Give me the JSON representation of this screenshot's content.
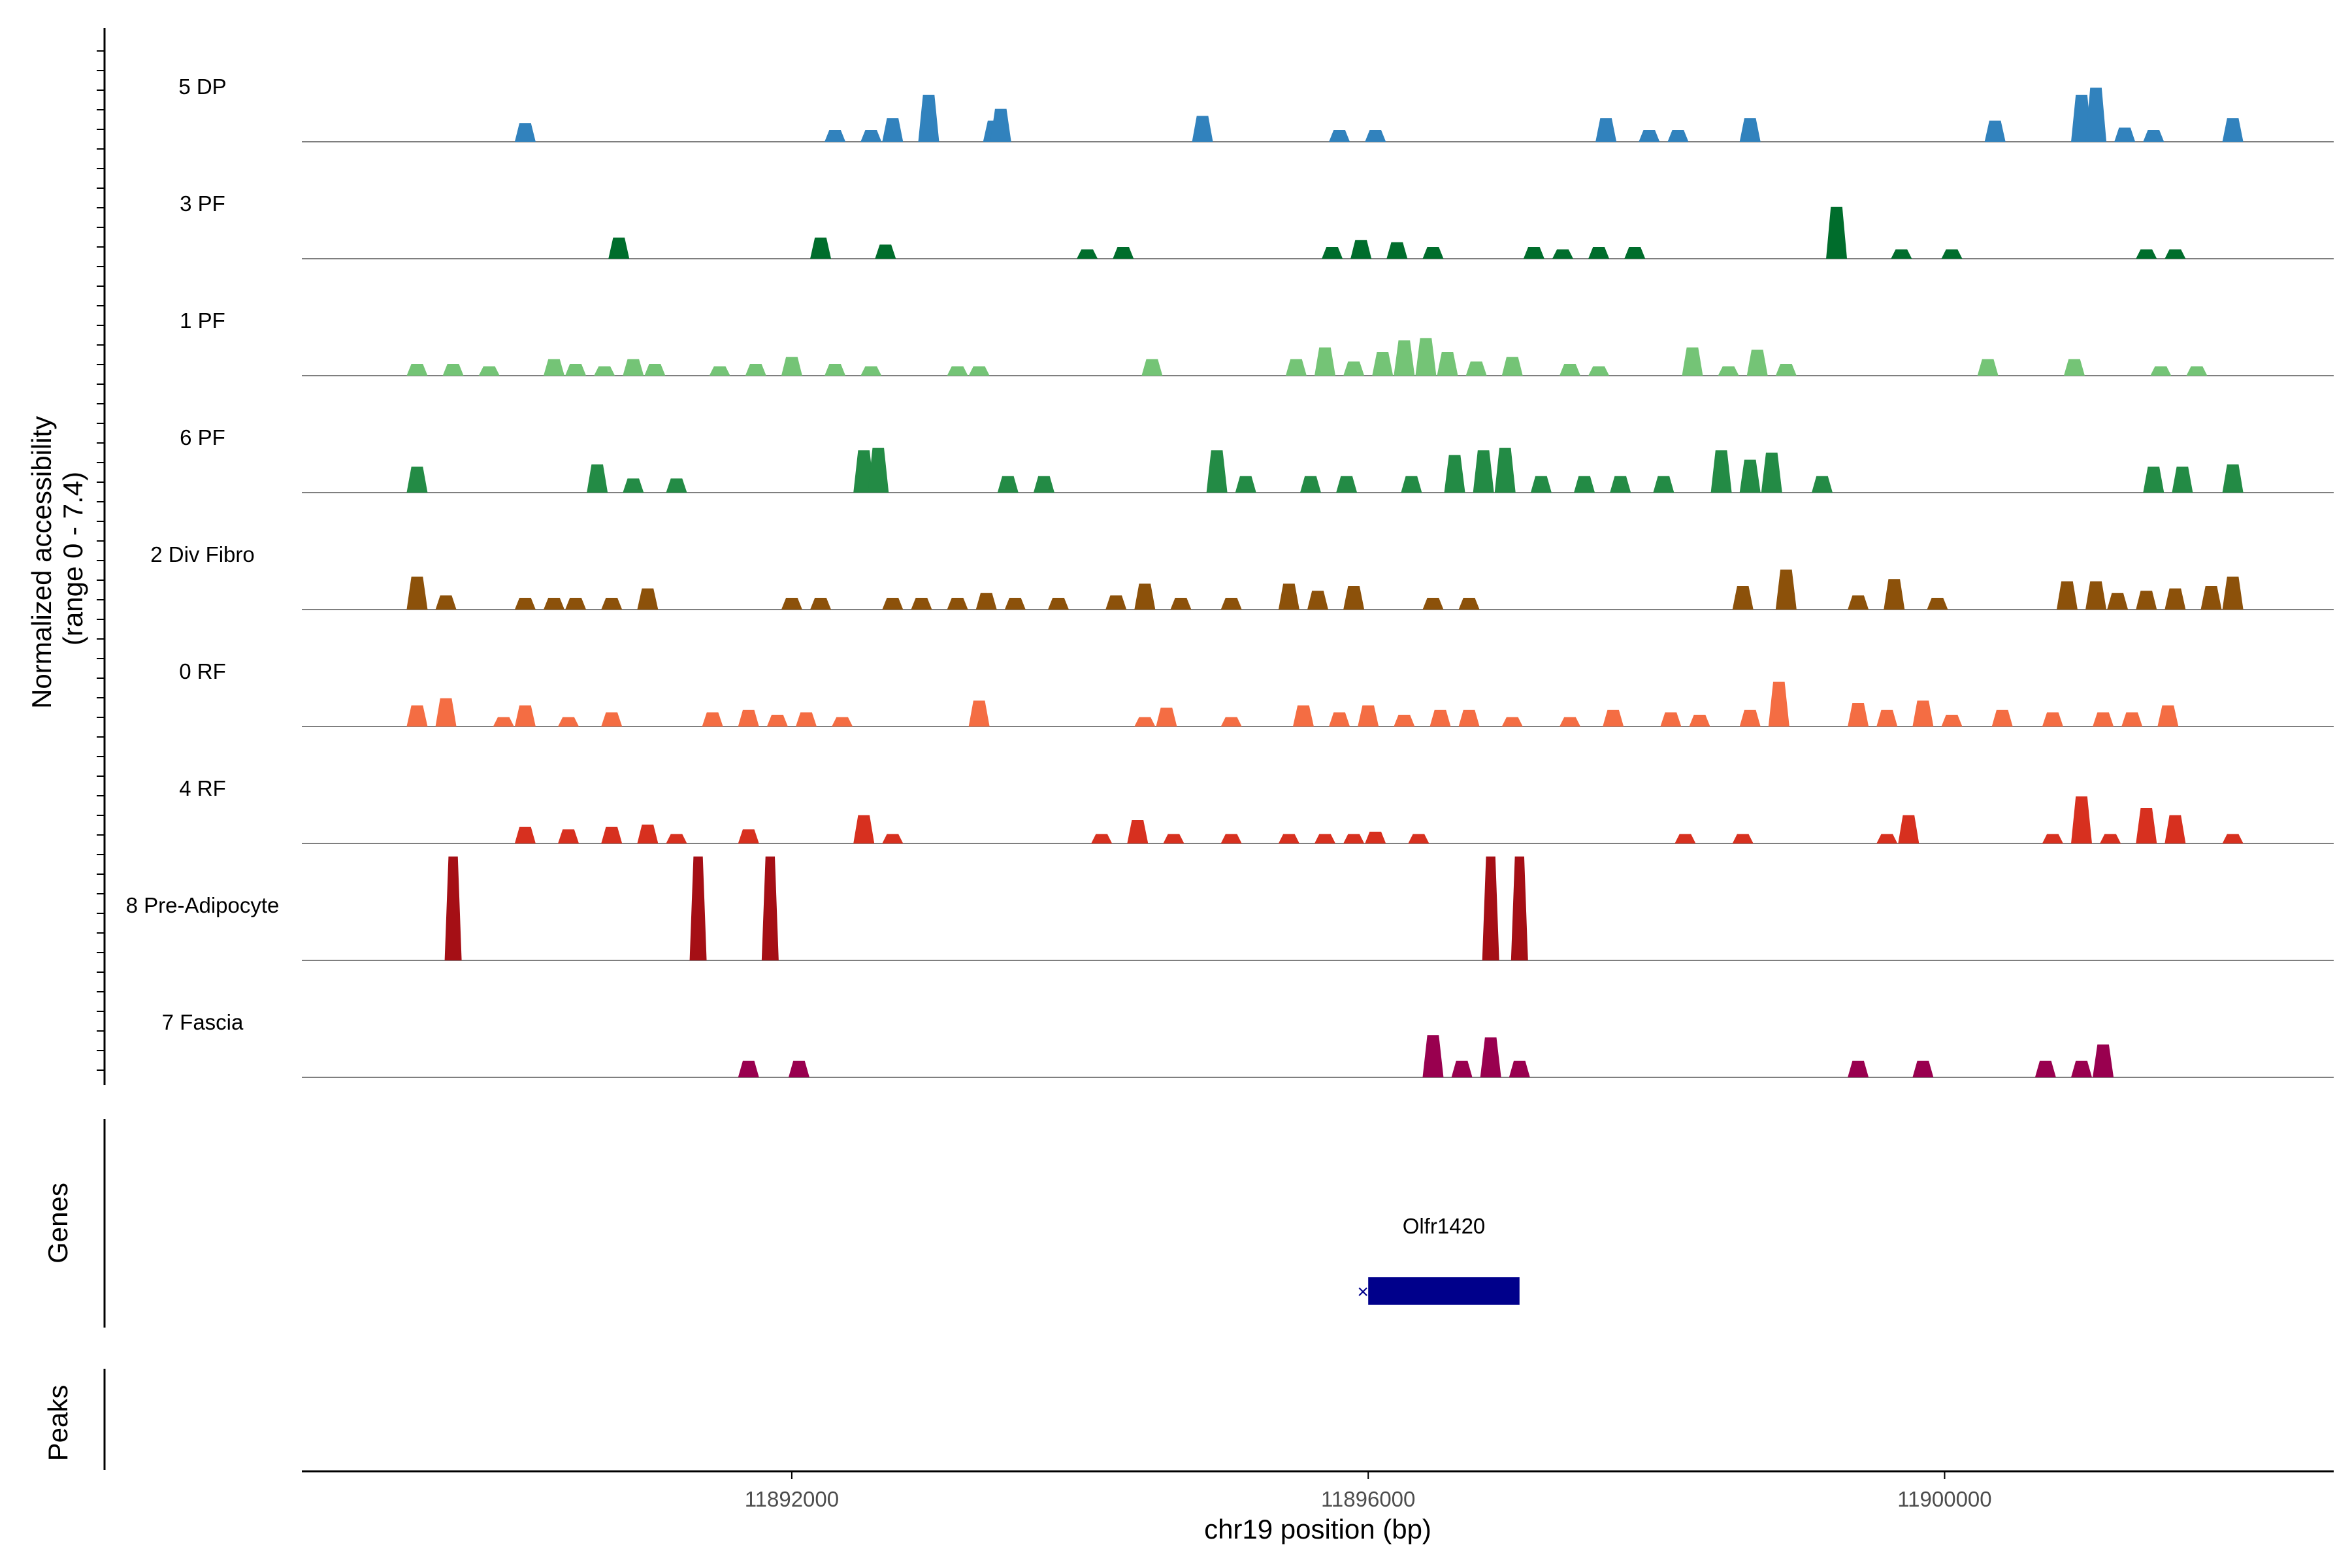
{
  "chart_data": {
    "type": "area",
    "panel": "coverage",
    "y_axis_title_line1": "Normalized accessibility",
    "y_axis_title_line2": "(range 0 - 7.4)",
    "y_range": [
      0,
      7.4
    ],
    "x_label": "chr19 position (bp)",
    "x_range": [
      11888600,
      11902700
    ],
    "x_ticks": [
      11892000,
      11896000,
      11900000
    ],
    "x_tick_labels": [
      "11892000",
      "11896000",
      "11900000"
    ],
    "tracks": [
      {
        "name": "5 DP",
        "color": "#3182bd",
        "peaks": [
          [
            11890150,
            0.4
          ],
          [
            11892300,
            0.25
          ],
          [
            11892550,
            0.25
          ],
          [
            11892700,
            0.5
          ],
          [
            11892950,
            1.0
          ],
          [
            11893400,
            0.45
          ],
          [
            11893450,
            0.7
          ],
          [
            11894850,
            0.55
          ],
          [
            11895800,
            0.25
          ],
          [
            11896050,
            0.25
          ],
          [
            11897650,
            0.5
          ],
          [
            11897950,
            0.25
          ],
          [
            11898150,
            0.25
          ],
          [
            11898650,
            0.5
          ],
          [
            11900350,
            0.45
          ],
          [
            11900950,
            1.0
          ],
          [
            11901050,
            1.15
          ],
          [
            11901250,
            0.3
          ],
          [
            11901450,
            0.25
          ],
          [
            11902000,
            0.5
          ]
        ]
      },
      {
        "name": "3 PF",
        "color": "#006d2c",
        "peaks": [
          [
            11890800,
            0.45
          ],
          [
            11892200,
            0.45
          ],
          [
            11892650,
            0.3
          ],
          [
            11894050,
            0.2
          ],
          [
            11894300,
            0.25
          ],
          [
            11895750,
            0.25
          ],
          [
            11895950,
            0.4
          ],
          [
            11896200,
            0.35
          ],
          [
            11896450,
            0.25
          ],
          [
            11897150,
            0.25
          ],
          [
            11897350,
            0.2
          ],
          [
            11897600,
            0.25
          ],
          [
            11897850,
            0.25
          ],
          [
            11899250,
            1.1
          ],
          [
            11899700,
            0.2
          ],
          [
            11900050,
            0.2
          ],
          [
            11901400,
            0.2
          ],
          [
            11901600,
            0.2
          ]
        ]
      },
      {
        "name": "1 PF",
        "color": "#74c476",
        "peaks": [
          [
            11889400,
            0.25
          ],
          [
            11889650,
            0.25
          ],
          [
            11889900,
            0.2
          ],
          [
            11890350,
            0.35
          ],
          [
            11890500,
            0.25
          ],
          [
            11890700,
            0.2
          ],
          [
            11890900,
            0.35
          ],
          [
            11891050,
            0.25
          ],
          [
            11891500,
            0.2
          ],
          [
            11891750,
            0.25
          ],
          [
            11892000,
            0.4
          ],
          [
            11892300,
            0.25
          ],
          [
            11892550,
            0.2
          ],
          [
            11893150,
            0.2
          ],
          [
            11893300,
            0.2
          ],
          [
            11894500,
            0.35
          ],
          [
            11895500,
            0.35
          ],
          [
            11895700,
            0.6
          ],
          [
            11895900,
            0.3
          ],
          [
            11896100,
            0.5
          ],
          [
            11896250,
            0.75
          ],
          [
            11896400,
            0.8
          ],
          [
            11896550,
            0.5
          ],
          [
            11896750,
            0.3
          ],
          [
            11897000,
            0.4
          ],
          [
            11897400,
            0.25
          ],
          [
            11897600,
            0.2
          ],
          [
            11898250,
            0.6
          ],
          [
            11898500,
            0.2
          ],
          [
            11898700,
            0.55
          ],
          [
            11898900,
            0.25
          ],
          [
            11900300,
            0.35
          ],
          [
            11900900,
            0.35
          ],
          [
            11901500,
            0.2
          ],
          [
            11901750,
            0.2
          ]
        ]
      },
      {
        "name": "6 PF",
        "color": "#238b45",
        "peaks": [
          [
            11889400,
            0.55
          ],
          [
            11890650,
            0.6
          ],
          [
            11890900,
            0.3
          ],
          [
            11891200,
            0.3
          ],
          [
            11892500,
            0.9
          ],
          [
            11892600,
            0.95
          ],
          [
            11893500,
            0.35
          ],
          [
            11893750,
            0.35
          ],
          [
            11894950,
            0.9
          ],
          [
            11895150,
            0.35
          ],
          [
            11895600,
            0.35
          ],
          [
            11895850,
            0.35
          ],
          [
            11896300,
            0.35
          ],
          [
            11896600,
            0.8
          ],
          [
            11896800,
            0.9
          ],
          [
            11896950,
            0.95
          ],
          [
            11897200,
            0.35
          ],
          [
            11897500,
            0.35
          ],
          [
            11897750,
            0.35
          ],
          [
            11898050,
            0.35
          ],
          [
            11898450,
            0.9
          ],
          [
            11898650,
            0.7
          ],
          [
            11898800,
            0.85
          ],
          [
            11899150,
            0.35
          ],
          [
            11901450,
            0.55
          ],
          [
            11901650,
            0.55
          ],
          [
            11902000,
            0.6
          ]
        ]
      },
      {
        "name": "2 Div Fibro",
        "color": "#8c510a",
        "peaks": [
          [
            11889400,
            0.7
          ],
          [
            11889600,
            0.3
          ],
          [
            11890150,
            0.25
          ],
          [
            11890350,
            0.25
          ],
          [
            11890500,
            0.25
          ],
          [
            11890750,
            0.25
          ],
          [
            11891000,
            0.45
          ],
          [
            11892000,
            0.25
          ],
          [
            11892200,
            0.25
          ],
          [
            11892700,
            0.25
          ],
          [
            11892900,
            0.25
          ],
          [
            11893150,
            0.25
          ],
          [
            11893350,
            0.35
          ],
          [
            11893550,
            0.25
          ],
          [
            11893850,
            0.25
          ],
          [
            11894250,
            0.3
          ],
          [
            11894450,
            0.55
          ],
          [
            11894700,
            0.25
          ],
          [
            11895050,
            0.25
          ],
          [
            11895450,
            0.55
          ],
          [
            11895650,
            0.4
          ],
          [
            11895900,
            0.5
          ],
          [
            11896450,
            0.25
          ],
          [
            11896700,
            0.25
          ],
          [
            11898600,
            0.5
          ],
          [
            11898900,
            0.85
          ],
          [
            11899400,
            0.3
          ],
          [
            11899650,
            0.65
          ],
          [
            11899950,
            0.25
          ],
          [
            11900850,
            0.6
          ],
          [
            11901050,
            0.6
          ],
          [
            11901200,
            0.35
          ],
          [
            11901400,
            0.4
          ],
          [
            11901600,
            0.45
          ],
          [
            11901850,
            0.5
          ],
          [
            11902000,
            0.7
          ]
        ]
      },
      {
        "name": "0 RF",
        "color": "#f46d43",
        "peaks": [
          [
            11889400,
            0.45
          ],
          [
            11889600,
            0.6
          ],
          [
            11890000,
            0.2
          ],
          [
            11890150,
            0.45
          ],
          [
            11890450,
            0.2
          ],
          [
            11890750,
            0.3
          ],
          [
            11891450,
            0.3
          ],
          [
            11891700,
            0.35
          ],
          [
            11891900,
            0.25
          ],
          [
            11892100,
            0.3
          ],
          [
            11892350,
            0.2
          ],
          [
            11893300,
            0.55
          ],
          [
            11894450,
            0.2
          ],
          [
            11894600,
            0.4
          ],
          [
            11895050,
            0.2
          ],
          [
            11895550,
            0.45
          ],
          [
            11895800,
            0.3
          ],
          [
            11896000,
            0.45
          ],
          [
            11896250,
            0.25
          ],
          [
            11896500,
            0.35
          ],
          [
            11896700,
            0.35
          ],
          [
            11897000,
            0.2
          ],
          [
            11897400,
            0.2
          ],
          [
            11897700,
            0.35
          ],
          [
            11898100,
            0.3
          ],
          [
            11898300,
            0.25
          ],
          [
            11898650,
            0.35
          ],
          [
            11898850,
            0.95
          ],
          [
            11899400,
            0.5
          ],
          [
            11899600,
            0.35
          ],
          [
            11899850,
            0.55
          ],
          [
            11900050,
            0.25
          ],
          [
            11900400,
            0.35
          ],
          [
            11900750,
            0.3
          ],
          [
            11901100,
            0.3
          ],
          [
            11901300,
            0.3
          ],
          [
            11901550,
            0.45
          ]
        ]
      },
      {
        "name": "4 RF",
        "color": "#d7301f",
        "peaks": [
          [
            11890150,
            0.35
          ],
          [
            11890450,
            0.3
          ],
          [
            11890750,
            0.35
          ],
          [
            11891000,
            0.4
          ],
          [
            11891200,
            0.2
          ],
          [
            11891700,
            0.3
          ],
          [
            11892500,
            0.6
          ],
          [
            11892700,
            0.2
          ],
          [
            11894150,
            0.2
          ],
          [
            11894400,
            0.5
          ],
          [
            11894650,
            0.2
          ],
          [
            11895050,
            0.2
          ],
          [
            11895450,
            0.2
          ],
          [
            11895700,
            0.2
          ],
          [
            11895900,
            0.2
          ],
          [
            11896050,
            0.25
          ],
          [
            11896350,
            0.2
          ],
          [
            11898200,
            0.2
          ],
          [
            11898600,
            0.2
          ],
          [
            11899600,
            0.2
          ],
          [
            11899750,
            0.6
          ],
          [
            11900750,
            0.2
          ],
          [
            11900950,
            1.0
          ],
          [
            11901150,
            0.2
          ],
          [
            11901400,
            0.75
          ],
          [
            11901600,
            0.6
          ],
          [
            11902000,
            0.2
          ]
        ]
      },
      {
        "name": "8 Pre-Adipocyte",
        "color": "#a50f15",
        "peaks": [
          [
            11889650,
            3.0
          ],
          [
            11891350,
            3.0
          ],
          [
            11891850,
            3.0
          ],
          [
            11896850,
            3.0
          ],
          [
            11897050,
            3.0
          ]
        ]
      },
      {
        "name": "7 Fascia",
        "color": "#99004f",
        "peaks": [
          [
            11891700,
            0.35
          ],
          [
            11892050,
            0.35
          ],
          [
            11896450,
            0.9
          ],
          [
            11896650,
            0.35
          ],
          [
            11896850,
            0.85
          ],
          [
            11897050,
            0.35
          ],
          [
            11899400,
            0.35
          ],
          [
            11899850,
            0.35
          ],
          [
            11900700,
            0.35
          ],
          [
            11900950,
            0.35
          ],
          [
            11901100,
            0.7
          ]
        ]
      }
    ],
    "genes_label": "Genes",
    "peaks_label": "Peaks",
    "genes": [
      {
        "name": "Olfr1420",
        "start": 11896000,
        "end": 11897050,
        "strand": "-",
        "color": "#00008b"
      }
    ]
  }
}
